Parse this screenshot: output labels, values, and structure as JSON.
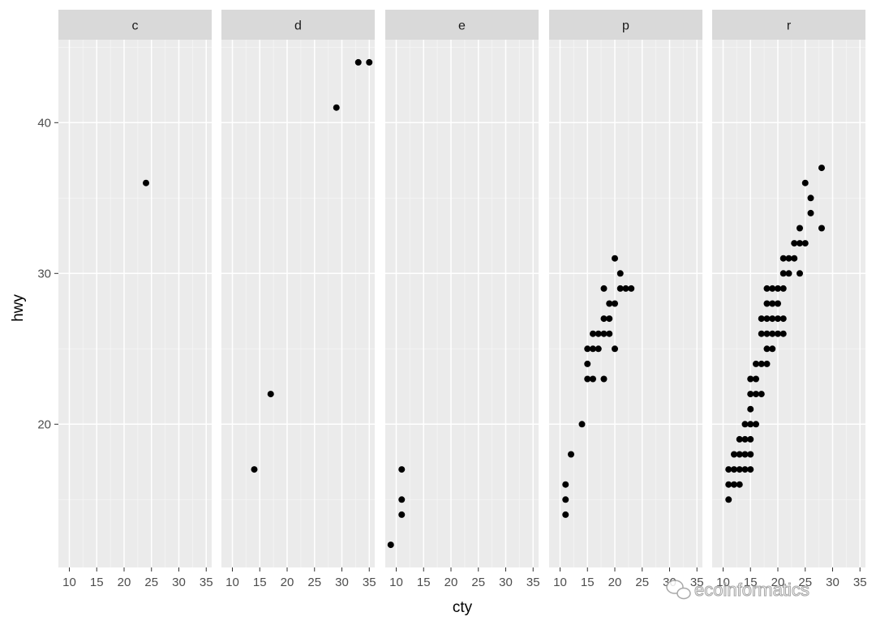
{
  "chart_data": {
    "type": "scatter",
    "title": "",
    "xlabel": "cty",
    "ylabel": "hwy",
    "xlim": [
      8,
      36
    ],
    "ylim": [
      10.5,
      45.5
    ],
    "x_ticks": [
      10,
      15,
      20,
      25,
      30,
      35
    ],
    "y_ticks": [
      20,
      30,
      40
    ],
    "grid": true,
    "facet_by": "fl",
    "panels": [
      {
        "label": "c",
        "points": [
          [
            24,
            36
          ]
        ]
      },
      {
        "label": "d",
        "points": [
          [
            14,
            17
          ],
          [
            17,
            22
          ],
          [
            29,
            41
          ],
          [
            33,
            44
          ],
          [
            35,
            44
          ]
        ]
      },
      {
        "label": "e",
        "points": [
          [
            9,
            12
          ],
          [
            11,
            14
          ],
          [
            11,
            15
          ],
          [
            11,
            17
          ]
        ]
      },
      {
        "label": "p",
        "points": [
          [
            11,
            14
          ],
          [
            11,
            15
          ],
          [
            11,
            16
          ],
          [
            12,
            18
          ],
          [
            14,
            20
          ],
          [
            15,
            23
          ],
          [
            15,
            24
          ],
          [
            15,
            25
          ],
          [
            16,
            23
          ],
          [
            16,
            25
          ],
          [
            16,
            26
          ],
          [
            17,
            25
          ],
          [
            17,
            26
          ],
          [
            18,
            23
          ],
          [
            18,
            26
          ],
          [
            18,
            27
          ],
          [
            18,
            29
          ],
          [
            19,
            26
          ],
          [
            19,
            27
          ],
          [
            19,
            28
          ],
          [
            20,
            25
          ],
          [
            20,
            28
          ],
          [
            20,
            31
          ],
          [
            21,
            29
          ],
          [
            21,
            30
          ],
          [
            22,
            29
          ],
          [
            23,
            29
          ]
        ]
      },
      {
        "label": "r",
        "points": [
          [
            11,
            15
          ],
          [
            11,
            16
          ],
          [
            11,
            17
          ],
          [
            12,
            16
          ],
          [
            12,
            17
          ],
          [
            12,
            18
          ],
          [
            13,
            16
          ],
          [
            13,
            17
          ],
          [
            13,
            18
          ],
          [
            13,
            19
          ],
          [
            14,
            17
          ],
          [
            14,
            18
          ],
          [
            14,
            19
          ],
          [
            14,
            20
          ],
          [
            15,
            17
          ],
          [
            15,
            18
          ],
          [
            15,
            19
          ],
          [
            15,
            20
          ],
          [
            15,
            21
          ],
          [
            15,
            22
          ],
          [
            15,
            23
          ],
          [
            16,
            20
          ],
          [
            16,
            22
          ],
          [
            16,
            23
          ],
          [
            16,
            24
          ],
          [
            17,
            22
          ],
          [
            17,
            24
          ],
          [
            17,
            26
          ],
          [
            17,
            27
          ],
          [
            18,
            24
          ],
          [
            18,
            25
          ],
          [
            18,
            26
          ],
          [
            18,
            27
          ],
          [
            18,
            28
          ],
          [
            18,
            29
          ],
          [
            19,
            25
          ],
          [
            19,
            26
          ],
          [
            19,
            27
          ],
          [
            19,
            28
          ],
          [
            19,
            29
          ],
          [
            20,
            26
          ],
          [
            20,
            27
          ],
          [
            20,
            28
          ],
          [
            20,
            29
          ],
          [
            21,
            26
          ],
          [
            21,
            27
          ],
          [
            21,
            29
          ],
          [
            21,
            30
          ],
          [
            21,
            31
          ],
          [
            22,
            30
          ],
          [
            22,
            31
          ],
          [
            23,
            31
          ],
          [
            23,
            32
          ],
          [
            24,
            30
          ],
          [
            24,
            32
          ],
          [
            24,
            33
          ],
          [
            25,
            32
          ],
          [
            25,
            36
          ],
          [
            26,
            34
          ],
          [
            26,
            35
          ],
          [
            28,
            33
          ],
          [
            28,
            37
          ]
        ]
      }
    ]
  },
  "watermark": {
    "text": "ecoinformatics",
    "icon": "wechat-icon"
  }
}
